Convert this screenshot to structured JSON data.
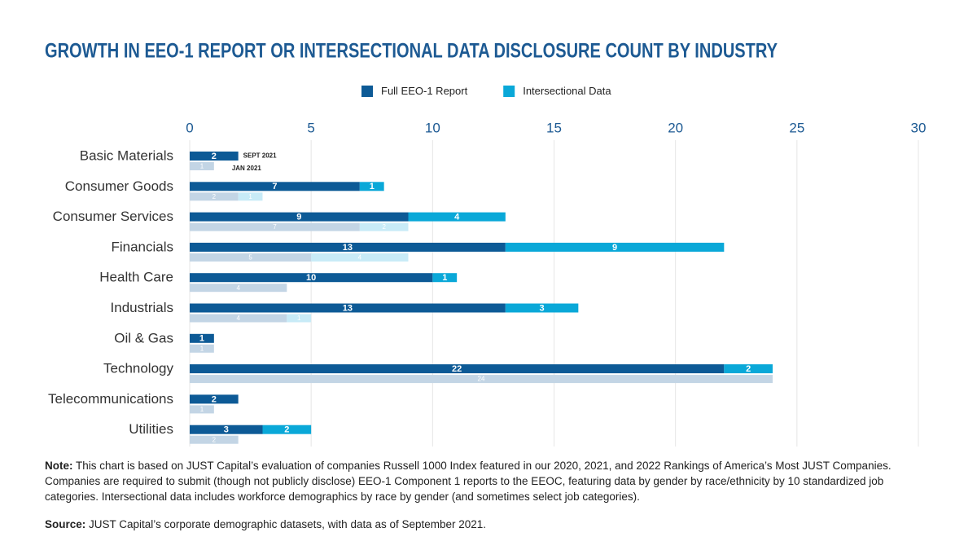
{
  "chart_data": {
    "type": "stacked_hbar_pair",
    "title": "GROWTH IN EEO-1 REPORT OR INTERSECTIONAL DATA DISCLOSURE COUNT BY INDUSTRY",
    "categories": [
      "Basic Materials",
      "Consumer Goods",
      "Consumer Services",
      "Financials",
      "Health Care",
      "Industrials",
      "Oil & Gas",
      "Technology",
      "Telecommunications",
      "Utilities"
    ],
    "periods": [
      "SEPT 2021",
      "JAN 2021"
    ],
    "series": [
      {
        "name": "Full EEO-1 Report",
        "color": "#0d5a96",
        "jan_color": "#c3d5e5",
        "values": [
          2,
          7,
          9,
          13,
          10,
          13,
          1,
          22,
          2,
          3
        ],
        "jan_values": [
          1,
          2,
          7,
          5,
          4,
          4,
          1,
          24,
          1,
          2
        ]
      },
      {
        "name": "Intersectional Data",
        "color": "#0aa8d8",
        "jan_color": "#c8ebf7",
        "values": [
          null,
          1,
          4,
          9,
          1,
          3,
          null,
          2,
          null,
          2
        ],
        "jan_values": [
          null,
          1,
          2,
          4,
          null,
          1,
          null,
          null,
          null,
          null
        ]
      }
    ],
    "xlim": [
      0,
      30
    ],
    "xticks": [
      0,
      5,
      10,
      15,
      20,
      25,
      30
    ],
    "grid": true,
    "note_label": "Note:",
    "note": "This chart is based on JUST Capital’s evaluation of companies Russell 1000 Index featured in our 2020, 2021, and 2022 Rankings of America’s Most JUST Companies. Companies are required to submit (though not publicly disclose) EEO-1 Component 1 reports to the EEOC, featuring data by gender by race/ethnicity by 10 standardized job categories. Intersectional data includes workforce demographics by race by gender (and sometimes select job categories).",
    "source_label": "Source:",
    "source": "JUST Capital’s corporate demographic datasets, with data as of September 2021."
  }
}
